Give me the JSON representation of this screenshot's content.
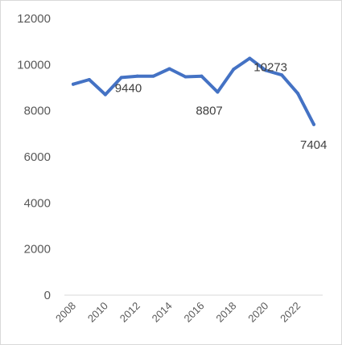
{
  "chart_data": {
    "type": "line",
    "title": "",
    "xlabel": "",
    "ylabel": "",
    "x": [
      2008,
      2009,
      2010,
      2011,
      2012,
      2013,
      2014,
      2015,
      2016,
      2017,
      2018,
      2019,
      2020,
      2021,
      2022,
      2023
    ],
    "series": [
      {
        "values": [
          9150,
          9350,
          8700,
          9440,
          9500,
          9500,
          9820,
          9470,
          9500,
          8807,
          9800,
          10273,
          9750,
          9550,
          8750,
          7404
        ],
        "color": "#4472c4"
      }
    ],
    "ylim": [
      0,
      12000
    ],
    "y_ticks": [
      "0",
      "2000",
      "4000",
      "6000",
      "8000",
      "10000",
      "12000"
    ],
    "x_ticks": [
      "2008",
      "2010",
      "2012",
      "2014",
      "2016",
      "2018",
      "2020",
      "2022"
    ],
    "data_labels": [
      {
        "x": 2011,
        "text": "9440"
      },
      {
        "x": 2017,
        "text": "8807"
      },
      {
        "x": 2019,
        "text": "10273"
      },
      {
        "x": 2023,
        "text": "7404"
      }
    ],
    "grid": false,
    "legend": "none"
  }
}
